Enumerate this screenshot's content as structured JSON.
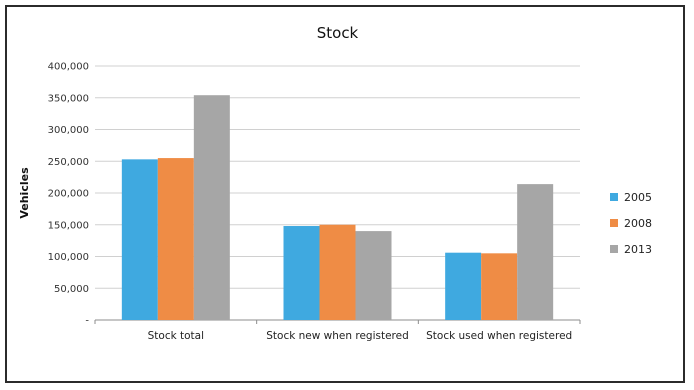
{
  "chart_data": {
    "type": "bar",
    "title": "Stock",
    "ylabel": "Vehicles",
    "xlabel": "",
    "categories": [
      "Stock total",
      "Stock new when registered",
      "Stock used when registered"
    ],
    "series": [
      {
        "name": "2005",
        "values": [
          253000,
          148000,
          106000
        ],
        "color": "#3fa9e0"
      },
      {
        "name": "2008",
        "values": [
          255000,
          150000,
          105000
        ],
        "color": "#ef8c45"
      },
      {
        "name": "2013",
        "values": [
          354000,
          140000,
          214000
        ],
        "color": "#a6a6a6"
      }
    ],
    "ylim": [
      0,
      400000
    ],
    "yticks": [
      0,
      50000,
      100000,
      150000,
      200000,
      250000,
      300000,
      350000,
      400000
    ],
    "ytick_labels": [
      "-",
      "50,000",
      "100,000",
      "150,000",
      "200,000",
      "250,000",
      "300,000",
      "350,000",
      "400,000"
    ],
    "grid": true,
    "legend_position": "right"
  }
}
